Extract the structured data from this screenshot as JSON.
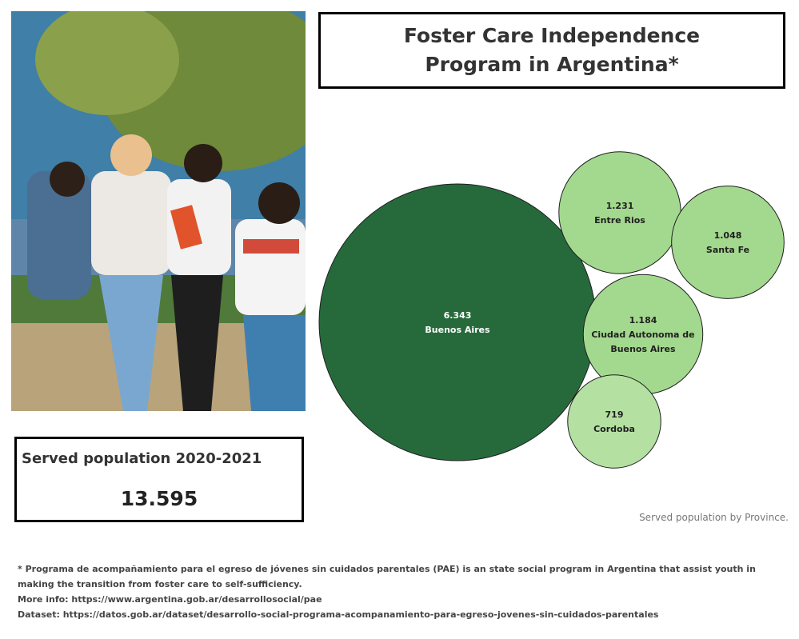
{
  "title": "Foster Care Independence Program in Argentina*",
  "served": {
    "label": "Served population 2020-2021",
    "value": "13.595"
  },
  "chart_data": {
    "type": "bubble",
    "caption": "Served population by Province.",
    "categories": [
      "Buenos Aires",
      "Entre Rios",
      "Santa Fe",
      "Ciudad Autonoma de Buenos Aires",
      "Cordoba"
    ],
    "values": [
      6343,
      1231,
      1048,
      1184,
      719
    ],
    "value_labels": [
      "6.343",
      "1.231",
      "1.048",
      "1.184",
      "719"
    ],
    "colors": [
      "#266a3c",
      "#a3d98e",
      "#a3d98e",
      "#a3d98e",
      "#b4e0a2"
    ]
  },
  "footnote": {
    "line1": "* Programa de acompañamiento para el egreso de jóvenes sin cuidados parentales (PAE) is an state social program in Argentina that assist youth in making the transition from foster care to self-sufficiency.",
    "line2": "More info: https://www.argentina.gob.ar/desarrollosocial/pae",
    "line3": "Dataset: https://datos.gob.ar/dataset/desarrollo-social-programa-acompanamiento-para-egreso-jovenes-sin-cuidados-parentales"
  }
}
